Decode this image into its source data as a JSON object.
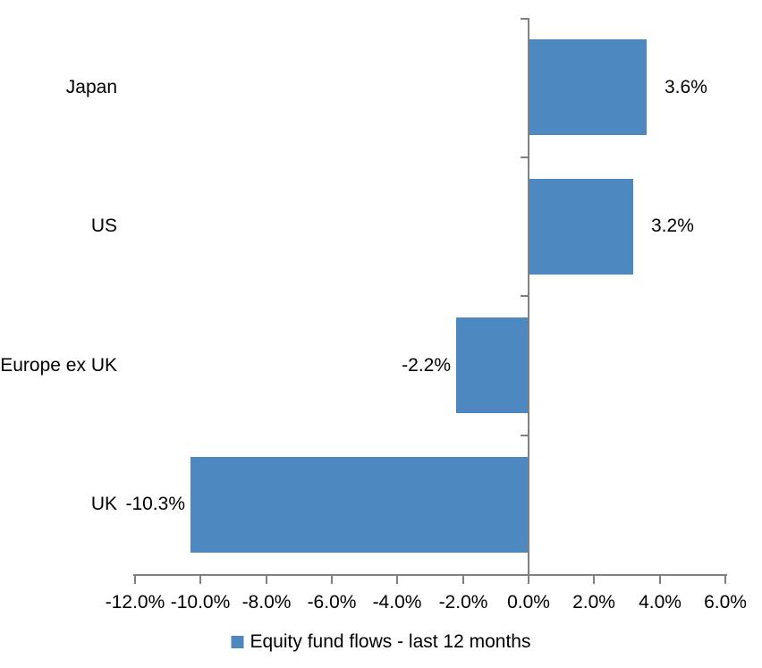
{
  "chart_data": {
    "type": "bar",
    "orientation": "horizontal",
    "title": "",
    "categories": [
      "Japan",
      "US",
      "Europe ex UK",
      "UK"
    ],
    "series": [
      {
        "name": "Equity fund flows - last 12 months",
        "values": [
          3.6,
          3.2,
          -2.2,
          -10.3
        ],
        "data_labels": [
          "3.6%",
          "3.2%",
          "-2.2%",
          "-10.3%"
        ],
        "color": "#4E88C0"
      }
    ],
    "xlabel": "",
    "ylabel": "",
    "xlim": [
      -12,
      6
    ],
    "x_ticks": [
      -12,
      -10,
      -8,
      -6,
      -4,
      -2,
      0,
      2,
      4,
      6
    ],
    "x_tick_labels": [
      "-12.0%",
      "-10.0%",
      "-8.0%",
      "-6.0%",
      "-4.0%",
      "-2.0%",
      "0.0%",
      "2.0%",
      "4.0%",
      "6.0%"
    ],
    "grid": "off",
    "legend_position": "bottom",
    "data_label_position": "outside-end",
    "axis_color": "#808080",
    "text_color": "#000000",
    "background_color": "#FFFFFF"
  }
}
